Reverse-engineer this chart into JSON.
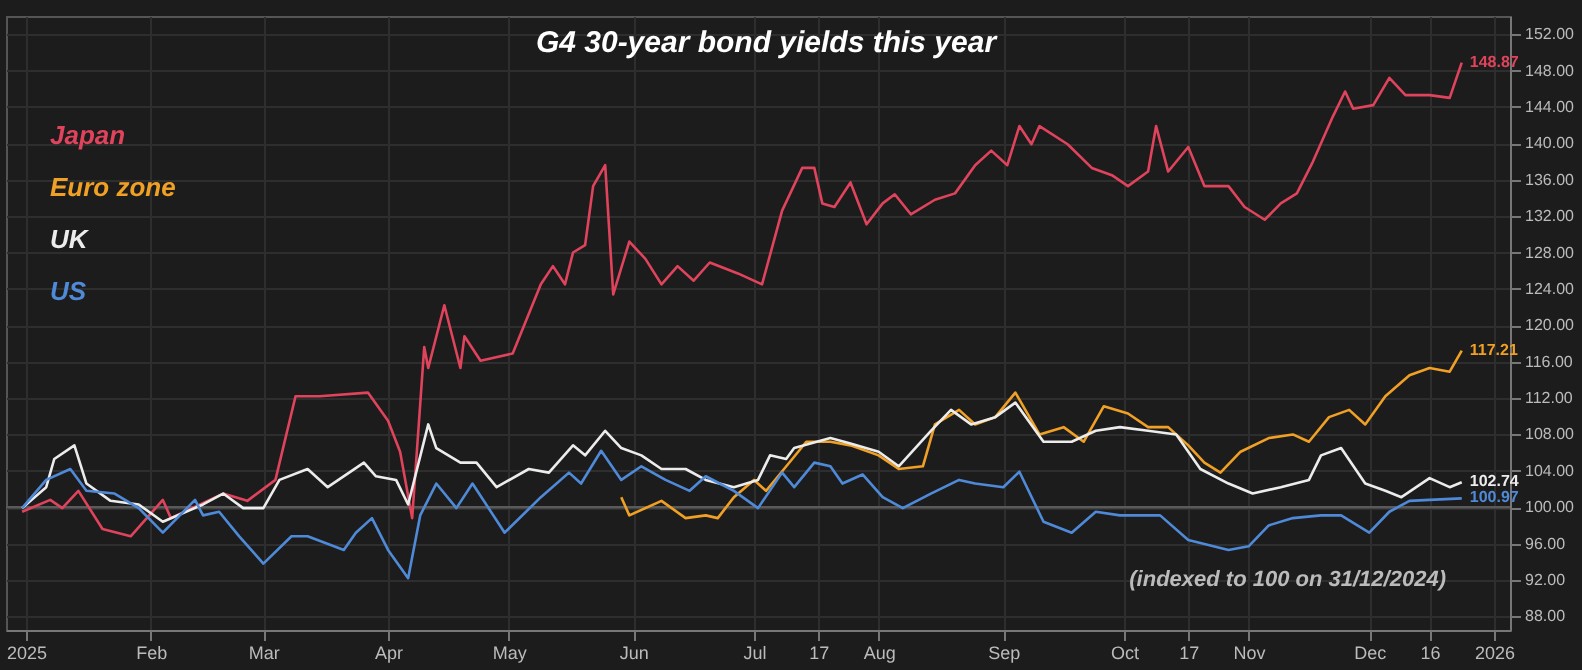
{
  "chart_data": {
    "type": "line",
    "title": "G4 30-year bond yields this year",
    "xlim": [
      "2024-12-27",
      "2026-01-05"
    ],
    "xticks": [
      {
        "value": "2025-01-01",
        "label": "2025"
      },
      {
        "value": "2025-02-01",
        "label": "Feb"
      },
      {
        "value": "2025-03-01",
        "label": "Mar"
      },
      {
        "value": "2025-04-01",
        "label": "Apr"
      },
      {
        "value": "2025-05-01",
        "label": "May"
      },
      {
        "value": "2025-06-01",
        "label": "Jun"
      },
      {
        "value": "2025-07-01",
        "label": "Jul"
      },
      {
        "value": "2025-07-17",
        "label": "17"
      },
      {
        "value": "2025-08-01",
        "label": "Aug"
      },
      {
        "value": "2025-09-01",
        "label": "Sep"
      },
      {
        "value": "2025-10-01",
        "label": "Oct"
      },
      {
        "value": "2025-10-17",
        "label": "17"
      },
      {
        "value": "2025-11-01",
        "label": "Nov"
      },
      {
        "value": "2025-12-01",
        "label": "Dec"
      },
      {
        "value": "2025-12-16",
        "label": "16"
      },
      {
        "value": "2026-01-01",
        "label": "2026"
      }
    ],
    "ylim": [
      86.5,
      154
    ],
    "yticks": [
      {
        "value": 88,
        "label": "88.00"
      },
      {
        "value": 92,
        "label": "92.00"
      },
      {
        "value": 96,
        "label": "96.00"
      },
      {
        "value": 100,
        "label": "100.00"
      },
      {
        "value": 104,
        "label": "104.00"
      },
      {
        "value": 108,
        "label": "108.00"
      },
      {
        "value": 112,
        "label": "112.00"
      },
      {
        "value": 116,
        "label": "116.00"
      },
      {
        "value": 120,
        "label": "120.00"
      },
      {
        "value": 124,
        "label": "124.00"
      },
      {
        "value": 128,
        "label": "128.00"
      },
      {
        "value": 132,
        "label": "132.00"
      },
      {
        "value": 136,
        "label": "136.00"
      },
      {
        "value": 140,
        "label": "140.00"
      },
      {
        "value": 144,
        "label": "144.00"
      },
      {
        "value": 148,
        "label": "148.00"
      },
      {
        "value": 152,
        "label": "152.00"
      }
    ],
    "grid": true,
    "legend": "top left",
    "ref_lines": [
      {
        "axis": "y",
        "value": 100,
        "color": "#5a5a5a"
      }
    ],
    "annotations": [
      "(indexed to 100 on 31/12/2024)",
      {
        "text": "148.87",
        "x": "2025-12-24",
        "y": 148.87
      },
      {
        "text": "117.21",
        "x": "2025-12-24",
        "y": 117.21
      },
      {
        "text": "102.74",
        "x": "2025-12-24",
        "y": 102.74
      },
      {
        "text": "100.97",
        "x": "2025-12-24",
        "y": 100.97
      }
    ],
    "series": [
      {
        "name": "Japan",
        "color": "#e0435c",
        "x": [
          "2024-12-31",
          "2025-01-07",
          "2025-01-10",
          "2025-01-14",
          "2025-01-20",
          "2025-01-27",
          "2025-02-04",
          "2025-02-06",
          "2025-02-19",
          "2025-02-25",
          "2025-03-04",
          "2025-03-09",
          "2025-03-15",
          "2025-03-27",
          "2025-04-01",
          "2025-04-04",
          "2025-04-07",
          "2025-04-10",
          "2025-04-11",
          "2025-04-15",
          "2025-04-19",
          "2025-04-20",
          "2025-04-24",
          "2025-05-02",
          "2025-05-09",
          "2025-05-12",
          "2025-05-15",
          "2025-05-17",
          "2025-05-20",
          "2025-05-22",
          "2025-05-25",
          "2025-05-27",
          "2025-05-31",
          "2025-06-04",
          "2025-06-08",
          "2025-06-12",
          "2025-06-16",
          "2025-06-20",
          "2025-06-27",
          "2025-07-03",
          "2025-07-08",
          "2025-07-13",
          "2025-07-16",
          "2025-07-18",
          "2025-07-21",
          "2025-07-25",
          "2025-07-29",
          "2025-08-02",
          "2025-08-05",
          "2025-08-09",
          "2025-08-15",
          "2025-08-20",
          "2025-08-25",
          "2025-08-29",
          "2025-09-02",
          "2025-09-05",
          "2025-09-08",
          "2025-09-10",
          "2025-09-17",
          "2025-09-23",
          "2025-09-28",
          "2025-10-02",
          "2025-10-07",
          "2025-10-09",
          "2025-10-12",
          "2025-10-17",
          "2025-10-21",
          "2025-10-27",
          "2025-10-31",
          "2025-11-05",
          "2025-11-09",
          "2025-11-13",
          "2025-11-17",
          "2025-11-22",
          "2025-11-25",
          "2025-11-27",
          "2025-12-02",
          "2025-12-06",
          "2025-12-10",
          "2025-12-16",
          "2025-12-21",
          "2025-12-24"
        ],
        "values": [
          99.5,
          100.8,
          99.9,
          101.8,
          97.6,
          96.8,
          100.8,
          98.8,
          101.5,
          100.7,
          103.0,
          112.2,
          112.2,
          112.6,
          109.5,
          106.1,
          98.8,
          117.6,
          115.3,
          122.2,
          115.3,
          118.8,
          116.1,
          116.9,
          124.5,
          126.5,
          124.5,
          128.0,
          128.8,
          135.3,
          137.6,
          123.4,
          129.2,
          127.3,
          124.5,
          126.5,
          124.9,
          126.9,
          125.7,
          124.5,
          132.6,
          137.3,
          137.3,
          133.4,
          133.0,
          135.7,
          131.1,
          133.4,
          134.4,
          132.2,
          133.8,
          134.5,
          137.6,
          139.2,
          137.6,
          141.9,
          139.9,
          141.9,
          139.9,
          137.3,
          136.5,
          135.3,
          136.9,
          141.9,
          136.9,
          139.6,
          135.3,
          135.3,
          133.0,
          131.6,
          133.4,
          134.5,
          138.0,
          143.0,
          145.7,
          143.8,
          144.2,
          147.2,
          145.3,
          145.3,
          145.0,
          148.87
        ]
      },
      {
        "name": "Euro zone",
        "color": "#f0a024",
        "x": [
          "2025-05-29",
          "2025-05-31",
          "2025-06-08",
          "2025-06-14",
          "2025-06-19",
          "2025-06-22",
          "2025-06-26",
          "2025-07-01",
          "2025-07-04",
          "2025-07-07",
          "2025-07-12",
          "2025-07-14",
          "2025-07-20",
          "2025-07-25",
          "2025-08-01",
          "2025-08-06",
          "2025-08-12",
          "2025-08-15",
          "2025-08-21",
          "2025-08-25",
          "2025-08-30",
          "2025-09-04",
          "2025-09-10",
          "2025-09-16",
          "2025-09-21",
          "2025-09-26",
          "2025-10-02",
          "2025-10-07",
          "2025-10-12",
          "2025-10-17",
          "2025-10-21",
          "2025-10-25",
          "2025-10-30",
          "2025-11-06",
          "2025-11-12",
          "2025-11-16",
          "2025-11-21",
          "2025-11-26",
          "2025-11-30",
          "2025-12-05",
          "2025-12-11",
          "2025-12-16",
          "2025-12-21",
          "2025-12-24"
        ],
        "values": [
          101.1,
          99.1,
          100.7,
          98.8,
          99.1,
          98.8,
          101.1,
          103.0,
          101.8,
          103.4,
          106.1,
          107.2,
          107.2,
          106.8,
          105.7,
          104.2,
          104.5,
          109.1,
          110.7,
          109.1,
          109.9,
          112.6,
          108.0,
          108.8,
          107.2,
          111.1,
          110.3,
          108.8,
          108.8,
          106.8,
          104.9,
          103.8,
          106.1,
          107.6,
          108.0,
          107.2,
          109.9,
          110.7,
          109.1,
          112.2,
          114.5,
          115.3,
          114.9,
          117.21
        ]
      },
      {
        "name": "UK",
        "color": "#ececec",
        "x": [
          "2024-12-31",
          "2025-01-06",
          "2025-01-08",
          "2025-01-13",
          "2025-01-16",
          "2025-01-22",
          "2025-01-29",
          "2025-02-04",
          "2025-02-14",
          "2025-02-19",
          "2025-02-24",
          "2025-03-01",
          "2025-03-05",
          "2025-03-12",
          "2025-03-17",
          "2025-03-26",
          "2025-03-29",
          "2025-04-03",
          "2025-04-06",
          "2025-04-11",
          "2025-04-13",
          "2025-04-19",
          "2025-04-23",
          "2025-04-28",
          "2025-05-06",
          "2025-05-11",
          "2025-05-17",
          "2025-05-20",
          "2025-05-25",
          "2025-05-29",
          "2025-06-03",
          "2025-06-08",
          "2025-06-14",
          "2025-06-19",
          "2025-06-26",
          "2025-07-02",
          "2025-07-05",
          "2025-07-09",
          "2025-07-11",
          "2025-07-20",
          "2025-07-25",
          "2025-08-01",
          "2025-08-06",
          "2025-08-14",
          "2025-08-19",
          "2025-08-24",
          "2025-08-30",
          "2025-09-04",
          "2025-09-11",
          "2025-09-18",
          "2025-09-24",
          "2025-09-30",
          "2025-10-07",
          "2025-10-14",
          "2025-10-20",
          "2025-10-27",
          "2025-11-02",
          "2025-11-09",
          "2025-11-16",
          "2025-11-19",
          "2025-11-24",
          "2025-11-30",
          "2025-12-05",
          "2025-12-09",
          "2025-12-16",
          "2025-12-21",
          "2025-12-24"
        ],
        "values": [
          99.9,
          102.2,
          105.3,
          106.8,
          102.6,
          100.7,
          100.3,
          98.4,
          100.3,
          101.5,
          99.9,
          99.9,
          103.0,
          104.2,
          102.2,
          104.9,
          103.4,
          103.0,
          100.3,
          109.1,
          106.5,
          104.9,
          104.9,
          102.2,
          104.2,
          103.8,
          106.8,
          105.7,
          108.4,
          106.5,
          105.7,
          104.2,
          104.2,
          103.0,
          102.2,
          103.0,
          105.7,
          105.3,
          106.5,
          107.6,
          107.0,
          106.1,
          104.5,
          108.4,
          110.7,
          109.1,
          109.9,
          111.5,
          107.2,
          107.2,
          108.4,
          108.8,
          108.4,
          108.0,
          104.2,
          102.6,
          101.5,
          102.2,
          103.0,
          105.7,
          106.5,
          102.6,
          101.8,
          101.1,
          103.2,
          102.2,
          102.74
        ]
      },
      {
        "name": "US",
        "color": "#4f8ad8",
        "x": [
          "2024-12-31",
          "2025-01-06",
          "2025-01-12",
          "2025-01-16",
          "2025-01-23",
          "2025-01-29",
          "2025-02-04",
          "2025-02-12",
          "2025-02-14",
          "2025-02-18",
          "2025-02-23",
          "2025-03-01",
          "2025-03-08",
          "2025-03-12",
          "2025-03-21",
          "2025-03-24",
          "2025-03-28",
          "2025-04-01",
          "2025-04-06",
          "2025-04-09",
          "2025-04-13",
          "2025-04-18",
          "2025-04-22",
          "2025-04-30",
          "2025-05-09",
          "2025-05-16",
          "2025-05-19",
          "2025-05-24",
          "2025-05-29",
          "2025-06-03",
          "2025-06-09",
          "2025-06-15",
          "2025-06-19",
          "2025-06-26",
          "2025-07-02",
          "2025-07-08",
          "2025-07-11",
          "2025-07-16",
          "2025-07-20",
          "2025-07-23",
          "2025-07-28",
          "2025-08-02",
          "2025-08-07",
          "2025-08-14",
          "2025-08-21",
          "2025-08-25",
          "2025-09-01",
          "2025-09-05",
          "2025-09-11",
          "2025-09-18",
          "2025-09-24",
          "2025-09-30",
          "2025-10-10",
          "2025-10-17",
          "2025-10-27",
          "2025-11-01",
          "2025-11-06",
          "2025-11-12",
          "2025-11-19",
          "2025-11-24",
          "2025-12-01",
          "2025-12-06",
          "2025-12-11",
          "2025-12-16",
          "2025-12-24"
        ],
        "values": [
          99.9,
          103.0,
          104.2,
          101.8,
          101.5,
          99.9,
          97.2,
          100.8,
          99.1,
          99.5,
          96.8,
          93.8,
          96.8,
          96.8,
          95.3,
          97.2,
          98.8,
          95.3,
          92.2,
          99.1,
          102.6,
          99.9,
          102.6,
          97.2,
          101.1,
          103.8,
          102.6,
          106.2,
          103.0,
          104.5,
          103.0,
          101.8,
          103.4,
          101.8,
          99.9,
          103.8,
          102.2,
          104.9,
          104.5,
          102.6,
          103.6,
          101.1,
          99.9,
          101.5,
          103.0,
          102.6,
          102.2,
          103.9,
          98.4,
          97.2,
          99.5,
          99.1,
          99.1,
          96.4,
          95.3,
          95.7,
          98.0,
          98.8,
          99.1,
          99.1,
          97.2,
          99.5,
          100.7,
          100.8,
          100.97
        ]
      }
    ]
  }
}
